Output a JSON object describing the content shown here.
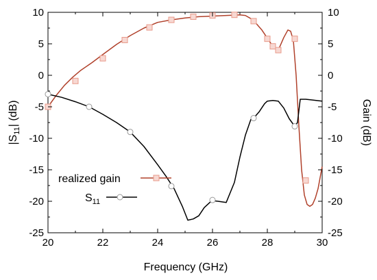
{
  "chart_data": {
    "type": "line",
    "xlabel": "Frequency (GHz)",
    "ylabel_left_main": "|S",
    "ylabel_left_sub": "11",
    "ylabel_left_end": "| (dB)",
    "ylabel_right": "Gain (dB)",
    "xlim": [
      20,
      30
    ],
    "ylim_left": [
      -25,
      10
    ],
    "ylim_right": [
      -25,
      10
    ],
    "xticks": [
      "20",
      "22",
      "24",
      "26",
      "28",
      "30"
    ],
    "yticks_left": [
      "10",
      "5",
      "0",
      "-5",
      "-10",
      "-15",
      "-20",
      "-25"
    ],
    "yticks_right": [
      "10",
      "5",
      "0",
      "-5",
      "-10",
      "-15",
      "-20",
      "-25"
    ],
    "grid": false,
    "legend_position": "lower-left",
    "series": [
      {
        "name": "realized gain",
        "axis": "right",
        "color": "#b0402a",
        "marker": "square",
        "marker_color": "#e89a8a",
        "x": [
          20.0,
          20.3,
          20.6,
          20.9,
          21.2,
          21.6,
          22.0,
          22.5,
          23.0,
          23.5,
          24.0,
          24.5,
          25.0,
          25.5,
          26.0,
          26.5,
          27.0,
          27.2,
          27.4,
          27.6,
          27.8,
          28.0,
          28.2,
          28.4,
          28.6,
          28.75,
          28.85,
          28.95,
          29.05,
          29.15,
          29.25,
          29.35,
          29.45,
          29.55,
          29.65,
          29.75,
          29.85,
          30.0
        ],
        "y": [
          -5.0,
          -3.2,
          -1.6,
          -0.3,
          0.8,
          2.0,
          3.3,
          4.9,
          6.3,
          7.5,
          8.4,
          8.8,
          9.1,
          9.3,
          9.4,
          9.5,
          9.6,
          9.5,
          9.0,
          8.2,
          7.2,
          5.9,
          4.6,
          4.0,
          6.0,
          7.2,
          7.0,
          5.5,
          0.0,
          -8.0,
          -15.0,
          -19.0,
          -20.5,
          -20.8,
          -20.5,
          -19.5,
          -18.0,
          -14.5
        ],
        "marker_x": [
          20.0,
          21.0,
          22.0,
          22.8,
          23.7,
          24.5,
          25.3,
          26.0,
          26.8,
          27.5,
          28.0,
          28.2,
          28.4,
          29.0,
          29.4
        ],
        "marker_y": [
          -5.0,
          -0.9,
          2.7,
          5.6,
          7.6,
          8.8,
          9.3,
          9.5,
          9.6,
          8.6,
          5.8,
          4.6,
          4.0,
          5.8,
          -16.7
        ]
      },
      {
        "name": "S",
        "name_sub": "11",
        "axis": "left",
        "color": "#000000",
        "marker": "circle",
        "marker_color": "#999999",
        "x": [
          20.0,
          20.5,
          21.0,
          21.5,
          22.0,
          22.5,
          23.0,
          23.5,
          24.0,
          24.3,
          24.6,
          24.9,
          25.1,
          25.3,
          25.5,
          25.7,
          25.9,
          26.0,
          26.2,
          26.5,
          26.8,
          27.0,
          27.2,
          27.4,
          27.5,
          27.7,
          27.9,
          28.0,
          28.2,
          28.4,
          28.6,
          28.8,
          29.0,
          29.1,
          29.2,
          29.4,
          29.6,
          30.0
        ],
        "y": [
          -3.0,
          -3.5,
          -4.2,
          -5.0,
          -6.2,
          -7.5,
          -9.0,
          -11.3,
          -14.2,
          -16.0,
          -18.0,
          -20.8,
          -23.0,
          -22.8,
          -22.3,
          -21.0,
          -20.2,
          -19.9,
          -20.0,
          -20.2,
          -17.0,
          -13.0,
          -9.5,
          -7.0,
          -6.8,
          -5.8,
          -4.5,
          -4.1,
          -4.0,
          -4.1,
          -5.2,
          -6.9,
          -8.1,
          -7.5,
          -3.8,
          -3.8,
          -3.9,
          -4.1
        ],
        "marker_x": [
          20.0,
          21.5,
          23.0,
          24.5,
          26.0,
          27.5,
          29.0
        ],
        "marker_y": [
          -3.0,
          -5.0,
          -9.0,
          -17.6,
          -19.8,
          -6.8,
          -8.1
        ]
      }
    ]
  }
}
